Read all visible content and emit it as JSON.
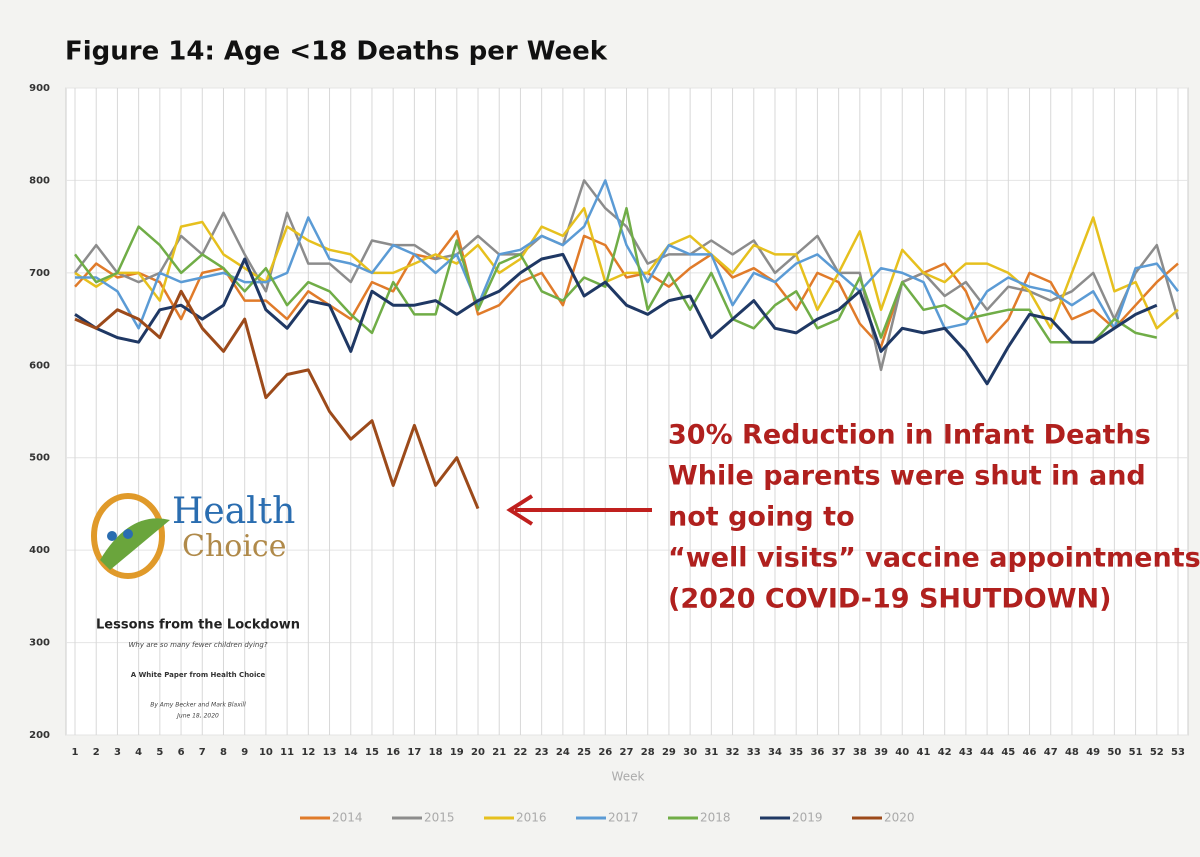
{
  "chart_data": {
    "type": "line",
    "title": "Figure 14: Age <18 Deaths per Week",
    "x_label": "Week",
    "x": [
      1,
      2,
      3,
      4,
      5,
      6,
      7,
      8,
      9,
      10,
      11,
      12,
      13,
      14,
      15,
      16,
      17,
      18,
      19,
      20,
      21,
      22,
      23,
      24,
      25,
      26,
      27,
      28,
      29,
      30,
      31,
      32,
      33,
      34,
      35,
      36,
      37,
      38,
      39,
      40,
      41,
      42,
      43,
      44,
      45,
      46,
      47,
      48,
      49,
      50,
      51,
      52,
      53
    ],
    "xlim": [
      1,
      53
    ],
    "ylim": [
      200,
      900
    ],
    "yticks": [
      200,
      300,
      400,
      500,
      600,
      700,
      800,
      900
    ],
    "grid": true,
    "legend": "bottom",
    "series": [
      {
        "name": "2014",
        "color": "#e07b2a",
        "values": [
          685,
          710,
          695,
          700,
          690,
          650,
          700,
          705,
          670,
          670,
          650,
          680,
          665,
          650,
          690,
          680,
          720,
          715,
          745,
          655,
          665,
          690,
          700,
          665,
          740,
          730,
          695,
          700,
          685,
          705,
          720,
          695,
          705,
          690,
          660,
          700,
          690,
          645,
          620,
          690,
          700,
          710,
          680,
          625,
          650,
          700,
          690,
          650,
          660,
          640,
          665,
          690,
          710
        ]
      },
      {
        "name": "2015",
        "color": "#8c8c8c",
        "values": [
          700,
          730,
          700,
          690,
          700,
          740,
          720,
          765,
          720,
          680,
          765,
          710,
          710,
          690,
          735,
          730,
          730,
          715,
          720,
          740,
          720,
          720,
          740,
          730,
          800,
          770,
          750,
          710,
          720,
          720,
          735,
          720,
          735,
          700,
          720,
          740,
          700,
          700,
          595,
          690,
          700,
          675,
          690,
          660,
          685,
          680,
          670,
          680,
          700,
          650,
          700,
          730,
          650
        ]
      },
      {
        "name": "2016",
        "color": "#e6c01e",
        "values": [
          700,
          685,
          700,
          700,
          670,
          750,
          755,
          720,
          705,
          690,
          750,
          735,
          725,
          720,
          700,
          700,
          710,
          720,
          710,
          730,
          700,
          715,
          750,
          740,
          770,
          690,
          700,
          700,
          730,
          740,
          720,
          700,
          730,
          720,
          720,
          660,
          700,
          745,
          660,
          725,
          700,
          690,
          710,
          710,
          700,
          680,
          640,
          700,
          760,
          680,
          690,
          640,
          660
        ]
      },
      {
        "name": "2017",
        "color": "#5b9bd5",
        "values": [
          695,
          695,
          680,
          640,
          700,
          690,
          695,
          700,
          690,
          690,
          700,
          760,
          715,
          710,
          700,
          730,
          720,
          700,
          720,
          665,
          720,
          725,
          740,
          730,
          750,
          800,
          730,
          690,
          730,
          720,
          720,
          665,
          700,
          690,
          710,
          720,
          700,
          680,
          705,
          700,
          690,
          640,
          645,
          680,
          695,
          685,
          680,
          665,
          680,
          640,
          705,
          710,
          680
        ]
      },
      {
        "name": "2018",
        "color": "#70ad47",
        "values": [
          720,
          690,
          700,
          750,
          730,
          700,
          720,
          705,
          680,
          705,
          665,
          690,
          680,
          655,
          635,
          690,
          655,
          655,
          735,
          660,
          710,
          720,
          680,
          670,
          695,
          685,
          770,
          660,
          700,
          660,
          700,
          650,
          640,
          665,
          680,
          640,
          650,
          695,
          630,
          690,
          660,
          665,
          650,
          655,
          660,
          660,
          625,
          625,
          625,
          650,
          635,
          630,
          null
        ]
      },
      {
        "name": "2019",
        "color": "#1f3864",
        "values": [
          655,
          640,
          630,
          625,
          660,
          665,
          650,
          665,
          715,
          660,
          640,
          670,
          665,
          615,
          680,
          665,
          665,
          670,
          655,
          670,
          680,
          700,
          715,
          720,
          675,
          690,
          665,
          655,
          670,
          675,
          630,
          650,
          670,
          640,
          635,
          650,
          660,
          680,
          615,
          640,
          635,
          640,
          615,
          580,
          620,
          655,
          650,
          625,
          625,
          640,
          655,
          665,
          null
        ]
      },
      {
        "name": "2020",
        "color": "#9c4a1a",
        "values": [
          650,
          640,
          660,
          650,
          630,
          680,
          640,
          615,
          650,
          565,
          590,
          595,
          550,
          520,
          540,
          470,
          535,
          470,
          500,
          445,
          null,
          null,
          null,
          null,
          null,
          null,
          null,
          null,
          null,
          null,
          null,
          null,
          null,
          null,
          null,
          null,
          null,
          null,
          null,
          null,
          null,
          null,
          null,
          null,
          null,
          null,
          null,
          null,
          null,
          null,
          null,
          null,
          null
        ]
      }
    ],
    "annotation": [
      "30% Reduction in Infant Deaths",
      "While parents were shut in and",
      "not going to",
      "“well visits” vaccine appointments.",
      "(2020 COVID-19 SHUTDOWN)"
    ],
    "logo": {
      "line1": "Health",
      "line2": "Choice"
    },
    "paper": {
      "title": "Lessons from the Lockdown",
      "subtitle": "Why are so many fewer children dying?",
      "kind": "A White Paper from Health Choice",
      "authors": "By Amy Becker and Mark Blaxill",
      "date": "June 18, 2020"
    }
  }
}
